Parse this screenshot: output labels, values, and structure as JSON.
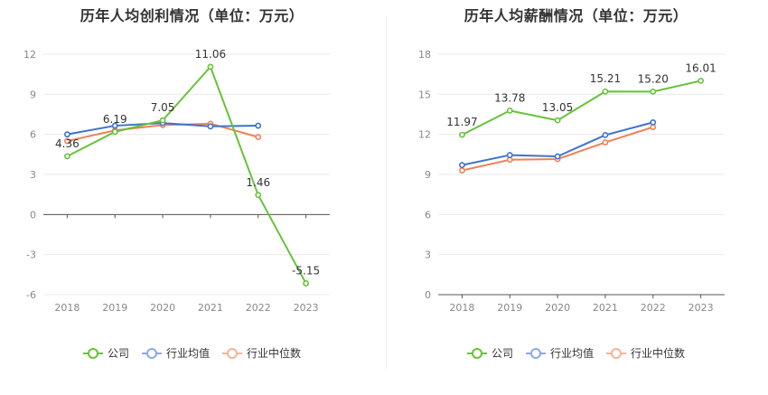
{
  "chart_data": [
    {
      "type": "line",
      "title": "历年人均创利情况（单位：万元）",
      "categories": [
        "2018",
        "2019",
        "2020",
        "2021",
        "2022",
        "2023"
      ],
      "ylim": [
        -6,
        12
      ],
      "yticks": [
        -6,
        -3,
        0,
        3,
        6,
        9,
        12
      ],
      "grid": true,
      "legend": "bottom",
      "series": [
        {
          "name": "公司",
          "color": "#67c23a",
          "values": [
            4.36,
            6.19,
            7.05,
            11.06,
            1.46,
            -5.15
          ],
          "labels": [
            "4.36",
            "6.19",
            "7.05",
            "11.06",
            "1.46",
            "-5.15"
          ]
        },
        {
          "name": "行业均值",
          "color": "#3f72cf",
          "values": [
            6.0,
            6.65,
            6.85,
            6.6,
            6.65,
            null
          ]
        },
        {
          "name": "行业中位数",
          "color": "#ee8157",
          "values": [
            5.5,
            6.3,
            6.7,
            6.8,
            5.8,
            null
          ]
        }
      ]
    },
    {
      "type": "line",
      "title": "历年人均薪酬情况（单位：万元）",
      "categories": [
        "2018",
        "2019",
        "2020",
        "2021",
        "2022",
        "2023"
      ],
      "ylim": [
        0,
        18
      ],
      "yticks": [
        0,
        3,
        6,
        9,
        12,
        15,
        18
      ],
      "grid": true,
      "legend": "bottom",
      "series": [
        {
          "name": "公司",
          "color": "#67c23a",
          "values": [
            11.97,
            13.78,
            13.05,
            15.21,
            15.2,
            16.01
          ],
          "labels": [
            "11.97",
            "13.78",
            "13.05",
            "15.21",
            "15.20",
            "16.01"
          ]
        },
        {
          "name": "行业均值",
          "color": "#3f72cf",
          "values": [
            9.7,
            10.45,
            10.35,
            11.95,
            12.9,
            null
          ]
        },
        {
          "name": "行业中位数",
          "color": "#ee8157",
          "values": [
            9.3,
            10.1,
            10.15,
            11.4,
            12.55,
            null
          ]
        }
      ]
    }
  ]
}
